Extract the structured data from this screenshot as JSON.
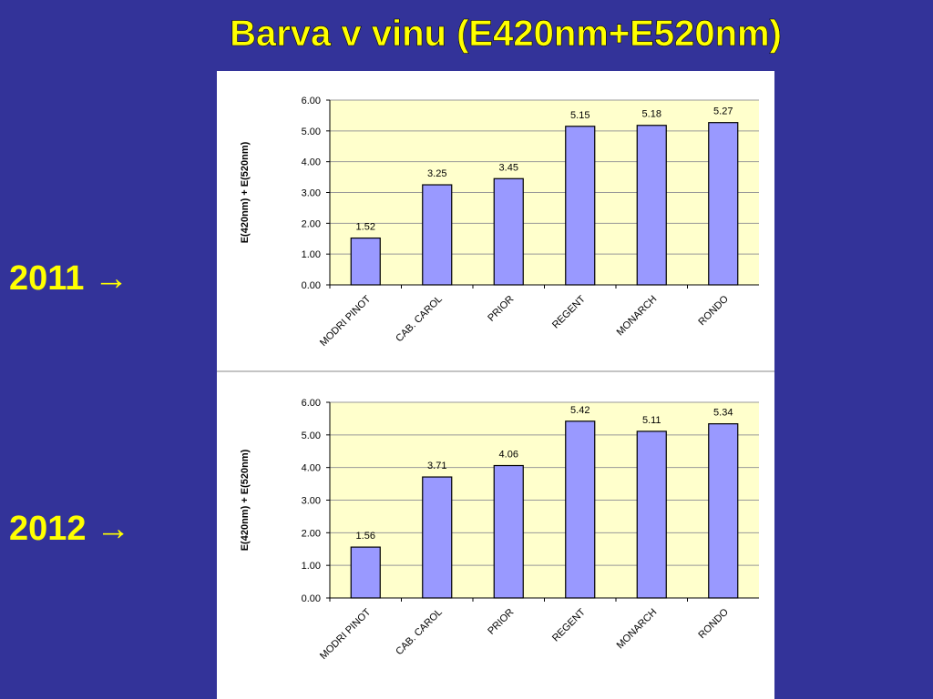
{
  "title": "Barva v vinu (E420nm+E520nm)",
  "row_labels": [
    "2011 →",
    "2012 →"
  ],
  "chart_data": [
    {
      "type": "bar",
      "y_label": "E(420nm) + E(520nm)",
      "categories": [
        "MODRI PINOT",
        "CAB. CAROL",
        "PRIOR",
        "REGENT",
        "MONARCH",
        "RONDO"
      ],
      "values": [
        1.52,
        3.25,
        3.45,
        5.15,
        5.18,
        5.27
      ],
      "color": "#9999ff",
      "ylim": [
        0,
        6
      ],
      "yticks": [
        {
          "value": 0,
          "label": "0.00"
        },
        {
          "value": 1,
          "label": "1.00"
        },
        {
          "value": 2,
          "label": "2.00"
        },
        {
          "value": 3,
          "label": "3.00"
        },
        {
          "value": 4,
          "label": "4.00"
        },
        {
          "value": 5,
          "label": "5.00"
        },
        {
          "value": 6,
          "label": "6.00"
        }
      ],
      "grid": true
    },
    {
      "type": "bar",
      "y_label": "E(420nm) + E(520nm)",
      "categories": [
        "MODRI PINOT",
        "CAB. CAROL",
        "PRIOR",
        "REGENT",
        "MONARCH",
        "RONDO"
      ],
      "values": [
        1.56,
        3.71,
        4.06,
        5.42,
        5.11,
        5.34
      ],
      "color": "#9999ff",
      "ylim": [
        0,
        6
      ],
      "yticks": [
        {
          "value": 0,
          "label": "0.00"
        },
        {
          "value": 1,
          "label": "1.00"
        },
        {
          "value": 2,
          "label": "2.00"
        },
        {
          "value": 3,
          "label": "3.00"
        },
        {
          "value": 4,
          "label": "4.00"
        },
        {
          "value": 5,
          "label": "5.00"
        },
        {
          "value": 6,
          "label": "6.00"
        }
      ],
      "grid": true
    }
  ]
}
